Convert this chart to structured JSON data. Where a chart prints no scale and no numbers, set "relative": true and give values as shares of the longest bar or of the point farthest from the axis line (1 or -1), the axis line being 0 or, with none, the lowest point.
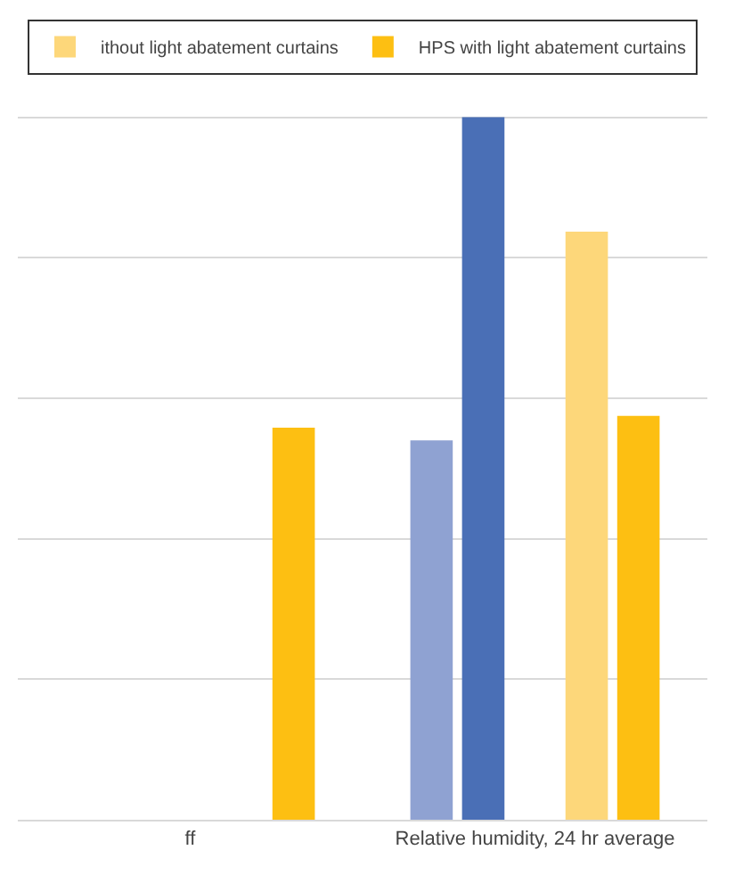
{
  "chart_data": {
    "type": "bar",
    "relative": true,
    "grid": "y",
    "legend": "top",
    "categories": [
      "ff",
      "Relative humidity, 24 hr average"
    ],
    "series": [
      {
        "color": "#8fa2d2",
        "values": [
          null,
          0.54
        ]
      },
      {
        "color": "#4a6fb6",
        "values": [
          null,
          1.0
        ]
      },
      {
        "name": "ithout light abatement curtains",
        "color": "#fdd77a",
        "values": [
          null,
          0.837
        ]
      },
      {
        "name": "HPS with light abatement curtains",
        "color": "#fdbf12",
        "values": [
          0.558,
          0.575
        ]
      }
    ]
  }
}
